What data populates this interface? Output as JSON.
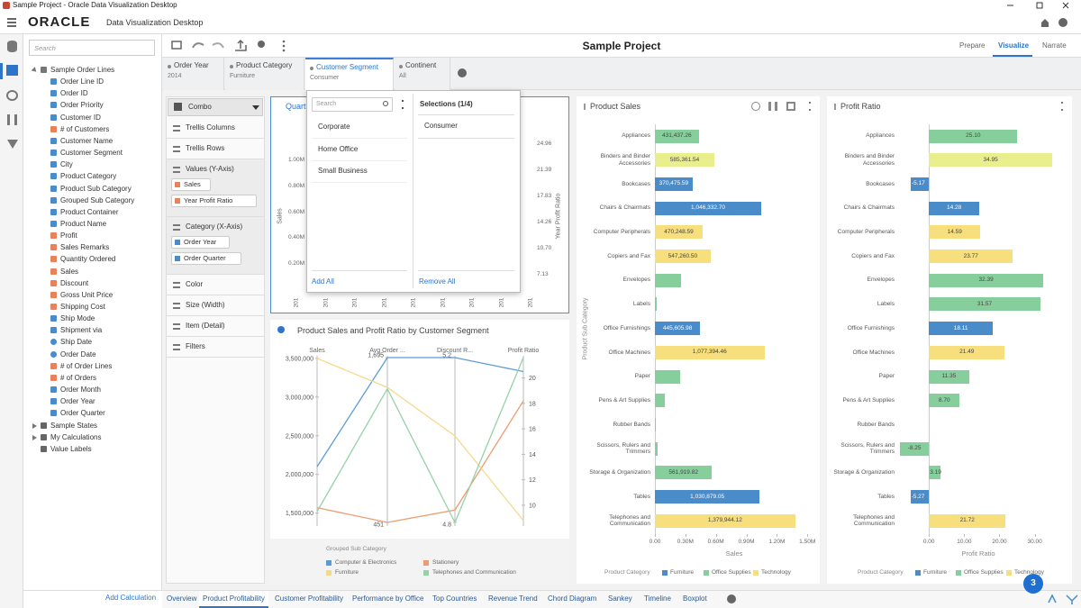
{
  "window_title": "Sample Project - Oracle Data Visualization Desktop",
  "header": {
    "brand": "ORACLE",
    "product": "Data Visualization Desktop"
  },
  "toolbar": {
    "project_title": "Sample Project",
    "modes": [
      "Prepare",
      "Visualize",
      "Narrate"
    ],
    "active_mode": 1
  },
  "data_panel": {
    "search_placeholder": "Search",
    "items": [
      {
        "label": "Sample Order Lines",
        "kind": "table"
      },
      {
        "label": "Order Line ID",
        "kind": "attr"
      },
      {
        "label": "Order ID",
        "kind": "attr"
      },
      {
        "label": "Order Priority",
        "kind": "attr"
      },
      {
        "label": "Customer ID",
        "kind": "attr"
      },
      {
        "label": "# of Customers",
        "kind": "measure"
      },
      {
        "label": "Customer Name",
        "kind": "attr"
      },
      {
        "label": "Customer Segment",
        "kind": "attr"
      },
      {
        "label": "City",
        "kind": "attr"
      },
      {
        "label": "Product Category",
        "kind": "attr"
      },
      {
        "label": "Product Sub Category",
        "kind": "attr"
      },
      {
        "label": "Grouped Sub Category",
        "kind": "attr"
      },
      {
        "label": "Product Container",
        "kind": "attr"
      },
      {
        "label": "Product Name",
        "kind": "attr"
      },
      {
        "label": "Profit",
        "kind": "measure"
      },
      {
        "label": "Sales Remarks",
        "kind": "measure"
      },
      {
        "label": "Quantity Ordered",
        "kind": "measure"
      },
      {
        "label": "Sales",
        "kind": "measure"
      },
      {
        "label": "Discount",
        "kind": "measure"
      },
      {
        "label": "Gross Unit Price",
        "kind": "measure"
      },
      {
        "label": "Shipping Cost",
        "kind": "measure"
      },
      {
        "label": "Ship Mode",
        "kind": "attr"
      },
      {
        "label": "Shipment via",
        "kind": "attr"
      },
      {
        "label": "Ship Date",
        "kind": "date"
      },
      {
        "label": "Order Date",
        "kind": "date"
      },
      {
        "label": "# of Order Lines",
        "kind": "measure"
      },
      {
        "label": "# of Orders",
        "kind": "measure"
      },
      {
        "label": "Order Month",
        "kind": "attr"
      },
      {
        "label": "Order Year",
        "kind": "attr"
      },
      {
        "label": "Order Quarter",
        "kind": "attr"
      },
      {
        "label": "Sample States",
        "kind": "folder"
      },
      {
        "label": "My Calculations",
        "kind": "folder"
      },
      {
        "label": "Value Labels",
        "kind": "label"
      }
    ],
    "add_calculation": "Add Calculation"
  },
  "filters": {
    "items": [
      {
        "label": "Order Year",
        "value": "2014"
      },
      {
        "label": "Product Category",
        "value": "Furniture"
      },
      {
        "label": "Customer Segment",
        "value": "Consumer"
      },
      {
        "label": "Continent",
        "value": "All"
      }
    ],
    "active": 2
  },
  "filter_popup": {
    "search_placeholder": "Search",
    "available": [
      "Corporate",
      "Home Office",
      "Small Business"
    ],
    "add_all": "Add All",
    "selections_title": "Selections (1/4)",
    "selected": [
      "Consumer"
    ],
    "remove_all": "Remove All"
  },
  "grammar": {
    "viz_type": "Combo",
    "sections": [
      {
        "label": "Trellis Columns",
        "pills": []
      },
      {
        "label": "Trellis Rows",
        "pills": []
      },
      {
        "label": "Values (Y-Axis)",
        "pills": [
          "Sales",
          "Year Profit Ratio"
        ]
      },
      {
        "label": "Category (X-Axis)",
        "pills": [
          "Order Year",
          "Order Quarter"
        ]
      },
      {
        "label": "Color",
        "pills": []
      },
      {
        "label": "Size (Width)",
        "pills": []
      },
      {
        "label": "Item (Detail)",
        "pills": []
      },
      {
        "label": "Filters",
        "pills": []
      }
    ]
  },
  "chart_data": [
    {
      "type": "combo",
      "title": "Quart",
      "y_label": "Sales",
      "y2_label": "Year Profit Ratio",
      "categories": [
        "201",
        "201",
        "201",
        "201",
        "201",
        "201",
        "201",
        "201",
        "201"
      ],
      "ylim": [
        0,
        1200000
      ],
      "yticks": [
        {
          "value": 200000,
          "label": "0.20M"
        },
        {
          "value": 400000,
          "label": "0.40M"
        },
        {
          "value": 600000,
          "label": "0.60M"
        },
        {
          "value": 800000,
          "label": "0.80M"
        },
        {
          "value": 1000000,
          "label": "1.00M"
        }
      ],
      "y2lim": [
        5.04,
        26.31
      ],
      "y2ticks": [
        7.13,
        {
          "value": 10.7,
          "label": "10.70"
        },
        14.26,
        17.83,
        21.39,
        24.96
      ]
    },
    {
      "type": "parallel",
      "title": "Product Sales and Profit Ratio by Customer Segment",
      "axes": [
        {
          "name": "Sales",
          "lim": [
            1380000,
            3510000
          ],
          "ticks": [
            {
              "value": 1500000,
              "label": "1,500,000"
            },
            {
              "value": 2000000,
              "label": "2,000,000"
            },
            {
              "value": 2500000,
              "label": "2,500,000"
            },
            {
              "value": 3000000,
              "label": "3,000,000"
            },
            {
              "value": 3500000,
              "label": "3,500,000"
            }
          ]
        },
        {
          "name": "Avg Order ...",
          "lim": [
            451,
            1695
          ],
          "ticks": [
            451,
            {
              "value": 1695,
              "label": "1,695"
            }
          ]
        },
        {
          "name": "Discount R...",
          "lim": [
            4.8,
            5.2
          ],
          "ticks": [
            4.8,
            5.2
          ]
        },
        {
          "name": "Profit Ratio",
          "lim": [
            8.65,
            21.6
          ],
          "ticks": [
            10,
            12,
            14,
            16,
            18,
            20
          ]
        }
      ],
      "legend_title": "Grouped Sub Category",
      "series": [
        {
          "name": "Computer & Electronics",
          "color": "#5b9bd5",
          "values": [
            2100000,
            1695,
            5.2,
            20.5
          ]
        },
        {
          "name": "Stationery",
          "color": "#ec9c6e",
          "values": [
            1570000,
            451,
            4.83,
            18.2
          ]
        },
        {
          "name": "Furniture",
          "color": "#f5d98b",
          "values": [
            3500000,
            1470,
            5.01,
            8.8
          ]
        },
        {
          "name": "Telephones and Communication",
          "color": "#93d3a6",
          "values": [
            1520000,
            1460,
            4.8,
            21.6
          ]
        }
      ]
    },
    {
      "type": "hbar",
      "title": "Product Sales",
      "x_label": "Sales",
      "y_label": "Product Sub Category",
      "categories": [
        "Appliances",
        "Binders and Binder Accessories",
        "Bookcases",
        "Chairs & Chairmats",
        "Computer Peripherals",
        "Copiers and Fax",
        "Envelopes",
        "Labels",
        "Office Furnishings",
        "Office Machines",
        "Paper",
        "Pens & Art Supplies",
        "Rubber Bands",
        "Scissors, Rulers and Trimmers",
        "Storage & Organization",
        "Tables",
        "Telephones and Communication"
      ],
      "values": [
        431437.26,
        585361.54,
        370475.59,
        1046332.7,
        470248.59,
        547260.5,
        260000,
        20000,
        445605.98,
        1077394.46,
        250000,
        100000,
        10000,
        30000,
        561919.82,
        1030879.05,
        1379944.12
      ],
      "value_labels": [
        "431,437.26",
        "585,361.54",
        "370,475.59",
        "1,046,332.70",
        "470,248.59",
        "547,260.50",
        null,
        null,
        "445,605.98",
        "1,077,394.46",
        null,
        null,
        null,
        null,
        "561,919.82",
        "1,030,879.05",
        "1,379,944.12"
      ],
      "colors": [
        "#86cf9c",
        "#e9ef8c",
        "#4a8bc9",
        "#4a8bc9",
        "#f7df7e",
        "#f7df7e",
        "#86cf9c",
        "#86cf9c",
        "#4a8bc9",
        "#f7df7e",
        "#86cf9c",
        "#86cf9c",
        "#86cf9c",
        "#86cf9c",
        "#86cf9c",
        "#4a8bc9",
        "#f7df7e"
      ],
      "xlim": [
        0,
        1560000
      ],
      "xticks": [
        {
          "value": 0,
          "label": "0.00"
        },
        {
          "value": 300000,
          "label": "0.30M"
        },
        {
          "value": 600000,
          "label": "0.60M"
        },
        {
          "value": 900000,
          "label": "0.90M"
        },
        {
          "value": 1200000,
          "label": "1.20M"
        },
        {
          "value": 1500000,
          "label": "1.50M"
        }
      ],
      "legend": {
        "title": "Product Category",
        "entries": [
          {
            "name": "Furniture",
            "color": "#4a8bc9"
          },
          {
            "name": "Office Supplies",
            "color": "#86cf9c"
          },
          {
            "name": "Technology",
            "color": "#f7df7e"
          }
        ]
      }
    },
    {
      "type": "hbar",
      "title": "Profit Ratio",
      "x_label": "Profit Ratio",
      "categories": [
        "Appliances",
        "Binders and Binder Accessories",
        "Bookcases",
        "Chairs & Chairmats",
        "Computer Peripherals",
        "Copiers and Fax",
        "Envelopes",
        "Labels",
        "Office Furnishings",
        "Office Machines",
        "Paper",
        "Pens & Art Supplies",
        "Rubber Bands",
        "Scissors, Rulers and Trimmers",
        "Storage & Organization",
        "Tables",
        "Telephones and Communication"
      ],
      "values": [
        25.1,
        34.95,
        -5.17,
        14.28,
        14.59,
        23.77,
        32.39,
        31.57,
        18.11,
        21.49,
        11.35,
        8.7,
        null,
        -8.25,
        3.19,
        -5.27,
        21.72
      ],
      "value_labels": [
        "25.10",
        "34.95",
        "-5.17",
        "14.28",
        "14.59",
        "23.77",
        "32.39",
        "31.57",
        "18.11",
        "21.49",
        "11.35",
        "8.70",
        null,
        "-8.25",
        "3.19",
        "-5.27",
        "21.72"
      ],
      "colors": [
        "#86cf9c",
        "#e9ef8c",
        "#4a8bc9",
        "#4a8bc9",
        "#f7df7e",
        "#f7df7e",
        "#86cf9c",
        "#86cf9c",
        "#4a8bc9",
        "#f7df7e",
        "#86cf9c",
        "#86cf9c",
        "#86cf9c",
        "#86cf9c",
        "#86cf9c",
        "#4a8bc9",
        "#f7df7e"
      ],
      "xlim": [
        -9,
        37
      ],
      "xticks": [
        {
          "value": 0,
          "label": "0.00"
        },
        {
          "value": 10,
          "label": "10.00"
        },
        {
          "value": 20,
          "label": "20.00"
        },
        {
          "value": 30,
          "label": "30.00"
        }
      ],
      "legend": {
        "title": "Product Category",
        "entries": [
          {
            "name": "Furniture",
            "color": "#4a8bc9"
          },
          {
            "name": "Office Supplies",
            "color": "#86cf9c"
          },
          {
            "name": "Technology",
            "color": "#f7df7e"
          }
        ]
      }
    }
  ],
  "canvas_tabs": {
    "items": [
      "Overview",
      "Product Profitability",
      "Customer Profitability",
      "Performance by Office",
      "Top Countries",
      "Revenue Trend",
      "Chord Diagram",
      "Sankey",
      "Timeline",
      "Boxplot"
    ],
    "active": 1
  },
  "notification_count": 3
}
